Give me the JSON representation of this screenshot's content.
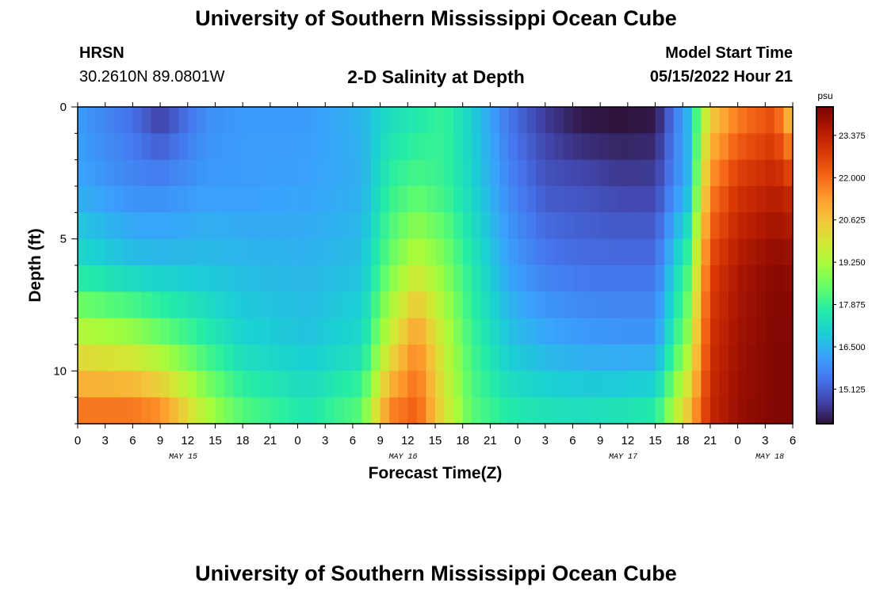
{
  "title": "University of Southern Mississippi Ocean Cube",
  "station": {
    "name": "HRSN",
    "coords": "30.2610N  89.0801W"
  },
  "model": {
    "label": "Model Start Time",
    "datetime": "05/15/2022 Hour 21"
  },
  "plot_title": "2-D Salinity at Depth",
  "footer_title": "University of Southern Mississippi Ocean Cube",
  "chart_data": {
    "type": "heatmap",
    "title": "2-D Salinity at Depth",
    "xlabel": "Forecast Time(Z)",
    "ylabel": "Depth (ft)",
    "x_range_hours": [
      0,
      78
    ],
    "x_ticks": [
      "0",
      "3",
      "6",
      "9",
      "12",
      "15",
      "18",
      "21",
      "0",
      "3",
      "6",
      "9",
      "12",
      "15",
      "18",
      "21",
      "0",
      "3",
      "6",
      "9",
      "12",
      "15",
      "18",
      "21",
      "0",
      "3",
      "6"
    ],
    "day_labels": [
      {
        "label": "MAY 15",
        "hour": 11.5
      },
      {
        "label": "MAY 16",
        "hour": 35.5
      },
      {
        "label": "MAY 17",
        "hour": 59.5
      },
      {
        "label": "MAY 18",
        "hour": 75.5
      }
    ],
    "y_range_ft": [
      0,
      12
    ],
    "y_ticks": [
      "0",
      "5",
      "10"
    ],
    "depth_layers": 12,
    "colorbar": {
      "unit": "psu",
      "min": 14.0,
      "max": 24.3,
      "ticks": [
        "15.125",
        "16.500",
        "17.875",
        "19.250",
        "20.625",
        "22.000",
        "23.375"
      ],
      "colors": [
        "#30123b",
        "#4145ab",
        "#4675ed",
        "#39a2fc",
        "#1bcfd4",
        "#24eca6",
        "#61fc6c",
        "#a4fc3b",
        "#d1e834",
        "#f3c63a",
        "#fe9b2d",
        "#f36315",
        "#d93806",
        "#b11901",
        "#7a0403"
      ]
    },
    "salinity_profile_anchors": {
      "hours": [
        0,
        6,
        9,
        14,
        18,
        25,
        31,
        34,
        37,
        40,
        43,
        47,
        51,
        55,
        59,
        63,
        66.5,
        69,
        72,
        76,
        78
      ],
      "depth_ft": [
        0.5,
        3,
        6,
        9,
        11.5
      ],
      "values_psu": [
        [
          16.1,
          15.4,
          14.7,
          15.9,
          16.1,
          16.1,
          16.5,
          17.3,
          17.6,
          17.9,
          17.0,
          15.5,
          14.6,
          14.1,
          14.0,
          14.1,
          16.5,
          20.5,
          21.8,
          22.5,
          20.5
        ],
        [
          16.3,
          15.8,
          15.8,
          16.1,
          16.1,
          16.2,
          16.4,
          17.8,
          18.2,
          17.9,
          17.1,
          15.8,
          15.0,
          14.9,
          14.7,
          14.7,
          16.5,
          21.6,
          22.9,
          23.4,
          23.0
        ],
        [
          17.3,
          16.8,
          16.7,
          16.7,
          16.6,
          16.5,
          16.7,
          18.5,
          19.6,
          18.8,
          17.6,
          16.2,
          15.6,
          15.4,
          15.4,
          15.4,
          18.0,
          22.6,
          23.6,
          24.1,
          24.0
        ],
        [
          19.8,
          19.4,
          18.8,
          17.8,
          17.1,
          16.8,
          17.2,
          19.8,
          21.6,
          19.6,
          18.0,
          16.8,
          16.4,
          16.2,
          16.1,
          16.1,
          19.0,
          23.0,
          23.8,
          24.2,
          24.2
        ],
        [
          21.8,
          21.8,
          21.5,
          19.3,
          18.2,
          17.5,
          18.3,
          21.6,
          22.2,
          20.0,
          18.3,
          17.6,
          17.4,
          17.3,
          17.4,
          17.6,
          20.5,
          23.2,
          23.9,
          24.2,
          24.2
        ]
      ]
    }
  }
}
